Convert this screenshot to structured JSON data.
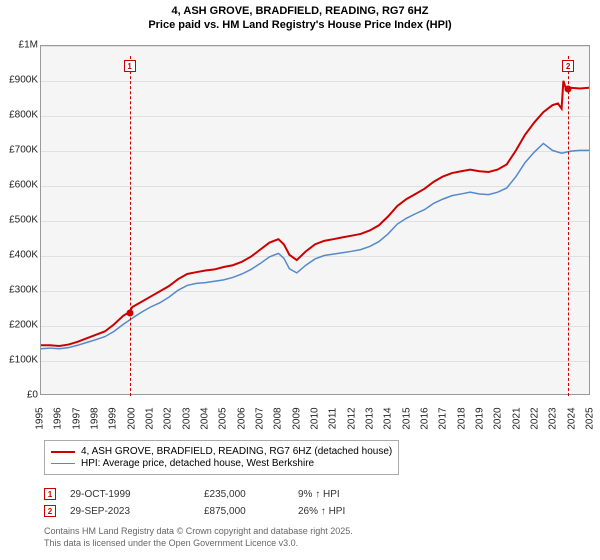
{
  "title_line1": "4, ASH GROVE, BRADFIELD, READING, RG7 6HZ",
  "title_line2": "Price paid vs. HM Land Registry's House Price Index (HPI)",
  "chart": {
    "type": "line",
    "background_color": "#f5f5f5",
    "grid_color": "#e0e0e0",
    "border_color": "#999999",
    "y": {
      "min": 0,
      "max": 1000000,
      "step": 100000,
      "ticks": [
        "£0",
        "£100K",
        "£200K",
        "£300K",
        "£400K",
        "£500K",
        "£600K",
        "£700K",
        "£800K",
        "£900K",
        "£1M"
      ],
      "label_fontsize": 10
    },
    "x": {
      "min": 1995,
      "max": 2025,
      "step": 1,
      "ticks": [
        "1995",
        "1996",
        "1997",
        "1998",
        "1999",
        "2000",
        "2001",
        "2002",
        "2003",
        "2004",
        "2005",
        "2006",
        "2007",
        "2008",
        "2009",
        "2010",
        "2011",
        "2012",
        "2013",
        "2014",
        "2015",
        "2016",
        "2017",
        "2018",
        "2019",
        "2020",
        "2021",
        "2022",
        "2023",
        "2024",
        "2025"
      ],
      "label_fontsize": 10
    },
    "series": [
      {
        "name": "price_paid",
        "label": "4, ASH GROVE, BRADFIELD, READING, RG7 6HZ (detached house)",
        "color": "#cc0000",
        "line_width": 2,
        "data": [
          [
            1995,
            140000
          ],
          [
            1995.5,
            140000
          ],
          [
            1996,
            138000
          ],
          [
            1996.5,
            142000
          ],
          [
            1997,
            150000
          ],
          [
            1997.5,
            160000
          ],
          [
            1998,
            170000
          ],
          [
            1998.5,
            180000
          ],
          [
            1999,
            200000
          ],
          [
            1999.5,
            225000
          ],
          [
            1999.83,
            235000
          ],
          [
            2000,
            250000
          ],
          [
            2000.5,
            265000
          ],
          [
            2001,
            280000
          ],
          [
            2001.5,
            295000
          ],
          [
            2002,
            310000
          ],
          [
            2002.5,
            330000
          ],
          [
            2003,
            345000
          ],
          [
            2003.5,
            350000
          ],
          [
            2004,
            355000
          ],
          [
            2004.5,
            358000
          ],
          [
            2005,
            365000
          ],
          [
            2005.5,
            370000
          ],
          [
            2006,
            380000
          ],
          [
            2006.5,
            395000
          ],
          [
            2007,
            415000
          ],
          [
            2007.5,
            435000
          ],
          [
            2008,
            445000
          ],
          [
            2008.3,
            430000
          ],
          [
            2008.6,
            400000
          ],
          [
            2009,
            385000
          ],
          [
            2009.5,
            410000
          ],
          [
            2010,
            430000
          ],
          [
            2010.5,
            440000
          ],
          [
            2011,
            445000
          ],
          [
            2011.5,
            450000
          ],
          [
            2012,
            455000
          ],
          [
            2012.5,
            460000
          ],
          [
            2013,
            470000
          ],
          [
            2013.5,
            485000
          ],
          [
            2014,
            510000
          ],
          [
            2014.5,
            540000
          ],
          [
            2015,
            560000
          ],
          [
            2015.5,
            575000
          ],
          [
            2016,
            590000
          ],
          [
            2016.5,
            610000
          ],
          [
            2017,
            625000
          ],
          [
            2017.5,
            635000
          ],
          [
            2018,
            640000
          ],
          [
            2018.5,
            645000
          ],
          [
            2019,
            640000
          ],
          [
            2019.5,
            638000
          ],
          [
            2020,
            645000
          ],
          [
            2020.5,
            660000
          ],
          [
            2021,
            700000
          ],
          [
            2021.5,
            745000
          ],
          [
            2022,
            780000
          ],
          [
            2022.5,
            810000
          ],
          [
            2023,
            830000
          ],
          [
            2023.3,
            835000
          ],
          [
            2023.5,
            820000
          ],
          [
            2023.6,
            900000
          ],
          [
            2023.75,
            875000
          ],
          [
            2024,
            880000
          ],
          [
            2024.5,
            878000
          ],
          [
            2025,
            880000
          ]
        ]
      },
      {
        "name": "hpi",
        "label": "HPI: Average price, detached house, West Berkshire",
        "color": "#5588cc",
        "line_width": 1.5,
        "data": [
          [
            1995,
            130000
          ],
          [
            1995.5,
            132000
          ],
          [
            1996,
            130000
          ],
          [
            1996.5,
            133000
          ],
          [
            1997,
            140000
          ],
          [
            1997.5,
            148000
          ],
          [
            1998,
            156000
          ],
          [
            1998.5,
            165000
          ],
          [
            1999,
            180000
          ],
          [
            1999.5,
            200000
          ],
          [
            2000,
            218000
          ],
          [
            2000.5,
            235000
          ],
          [
            2001,
            250000
          ],
          [
            2001.5,
            262000
          ],
          [
            2002,
            278000
          ],
          [
            2002.5,
            298000
          ],
          [
            2003,
            312000
          ],
          [
            2003.5,
            318000
          ],
          [
            2004,
            320000
          ],
          [
            2004.5,
            324000
          ],
          [
            2005,
            328000
          ],
          [
            2005.5,
            335000
          ],
          [
            2006,
            345000
          ],
          [
            2006.5,
            358000
          ],
          [
            2007,
            375000
          ],
          [
            2007.5,
            394000
          ],
          [
            2008,
            404000
          ],
          [
            2008.3,
            390000
          ],
          [
            2008.6,
            360000
          ],
          [
            2009,
            348000
          ],
          [
            2009.5,
            370000
          ],
          [
            2010,
            388000
          ],
          [
            2010.5,
            398000
          ],
          [
            2011,
            402000
          ],
          [
            2011.5,
            406000
          ],
          [
            2012,
            410000
          ],
          [
            2012.5,
            415000
          ],
          [
            2013,
            424000
          ],
          [
            2013.5,
            438000
          ],
          [
            2014,
            460000
          ],
          [
            2014.5,
            488000
          ],
          [
            2015,
            505000
          ],
          [
            2015.5,
            518000
          ],
          [
            2016,
            530000
          ],
          [
            2016.5,
            548000
          ],
          [
            2017,
            560000
          ],
          [
            2017.5,
            570000
          ],
          [
            2018,
            575000
          ],
          [
            2018.5,
            580000
          ],
          [
            2019,
            575000
          ],
          [
            2019.5,
            573000
          ],
          [
            2020,
            580000
          ],
          [
            2020.5,
            592000
          ],
          [
            2021,
            625000
          ],
          [
            2021.5,
            665000
          ],
          [
            2022,
            695000
          ],
          [
            2022.5,
            720000
          ],
          [
            2023,
            700000
          ],
          [
            2023.5,
            692000
          ],
          [
            2024,
            698000
          ],
          [
            2024.5,
            700000
          ],
          [
            2025,
            700000
          ]
        ]
      }
    ],
    "markers": [
      {
        "id": "1",
        "year": 1999.83,
        "price": 235000
      },
      {
        "id": "2",
        "year": 2023.75,
        "price": 875000
      }
    ]
  },
  "legend": {
    "items": [
      {
        "color": "#cc0000",
        "width": 2,
        "label": "4, ASH GROVE, BRADFIELD, READING, RG7 6HZ (detached house)"
      },
      {
        "color": "#5588cc",
        "width": 1.5,
        "label": "HPI: Average price, detached house, West Berkshire"
      }
    ]
  },
  "sales": [
    {
      "marker": "1",
      "date": "29-OCT-1999",
      "price": "£235,000",
      "pct": "9% ↑ HPI"
    },
    {
      "marker": "2",
      "date": "29-SEP-2023",
      "price": "£875,000",
      "pct": "26% ↑ HPI"
    }
  ],
  "copyright_line1": "Contains HM Land Registry data © Crown copyright and database right 2025.",
  "copyright_line2": "This data is licensed under the Open Government Licence v3.0."
}
